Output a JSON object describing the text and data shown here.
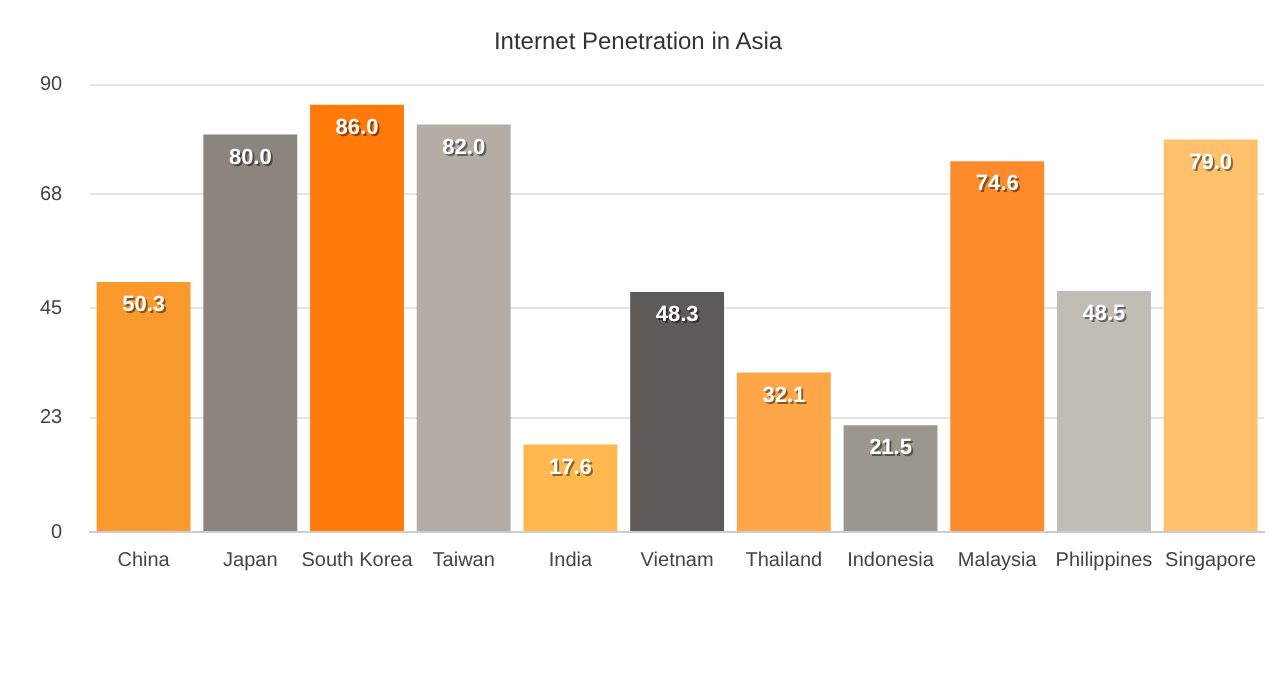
{
  "chart_data": {
    "type": "bar",
    "title": "Internet Penetration in Asia",
    "categories": [
      "China",
      "Japan",
      "South Korea",
      "Taiwan",
      "India",
      "Vietnam",
      "Thailand",
      "Indonesia",
      "Malaysia",
      "Philippines",
      "Singapore"
    ],
    "values": [
      50.3,
      80.0,
      86.0,
      82.0,
      17.6,
      48.3,
      32.1,
      21.5,
      74.6,
      48.5,
      79.0
    ],
    "value_labels": [
      "50.3",
      "80.0",
      "86.0",
      "82.0",
      "17.6",
      "48.3",
      "32.1",
      "21.5",
      "74.6",
      "48.5",
      "79.0"
    ],
    "colors": [
      "#fb9a2c",
      "#8b857e",
      "#ff7a0a",
      "#b4ada5",
      "#ffb84f",
      "#5c5b5a",
      "#ffa748",
      "#9b978f",
      "#ff8a2c",
      "#c2bdb4",
      "#ffc16c"
    ],
    "ylim": [
      0,
      90
    ],
    "yticks": [
      0,
      23,
      45,
      68,
      90
    ],
    "grid": "y",
    "legend": false
  }
}
